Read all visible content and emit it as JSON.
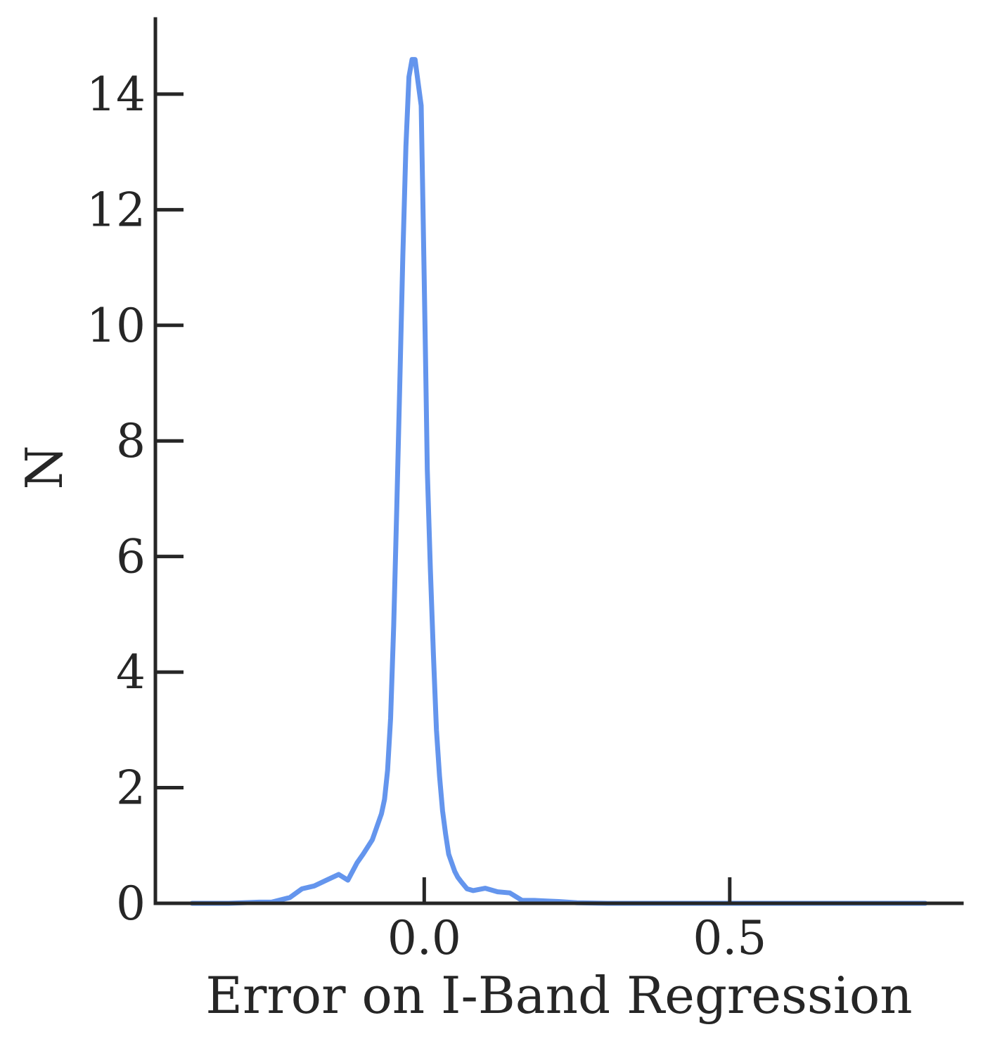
{
  "chart_data": {
    "type": "line",
    "title": "",
    "xlabel": "Error on I-Band Regression",
    "ylabel": "N",
    "xlim": [
      -0.44,
      0.88
    ],
    "ylim": [
      0,
      15.3
    ],
    "xticks": [
      {
        "value": 0.0,
        "label": "0.0"
      },
      {
        "value": 0.5,
        "label": "0.5"
      }
    ],
    "yticks": [
      {
        "value": 0,
        "label": "0"
      },
      {
        "value": 2,
        "label": "2"
      },
      {
        "value": 4,
        "label": "4"
      },
      {
        "value": 6,
        "label": "6"
      },
      {
        "value": 8,
        "label": "8"
      },
      {
        "value": 10,
        "label": "10"
      },
      {
        "value": 12,
        "label": "12"
      },
      {
        "value": 14,
        "label": "14"
      }
    ],
    "grid": false,
    "legend": "none",
    "series": [
      {
        "color": "#6495ED",
        "x": [
          -0.38,
          -0.32,
          -0.27,
          -0.25,
          -0.22,
          -0.2,
          -0.18,
          -0.16,
          -0.14,
          -0.125,
          -0.11,
          -0.1,
          -0.085,
          -0.07,
          -0.065,
          -0.06,
          -0.055,
          -0.05,
          -0.045,
          -0.04,
          -0.035,
          -0.03,
          -0.025,
          -0.02,
          -0.015,
          -0.01,
          -0.005,
          -0.002,
          0.0,
          0.002,
          0.005,
          0.01,
          0.015,
          0.02,
          0.025,
          0.03,
          0.035,
          0.04,
          0.045,
          0.05,
          0.055,
          0.06,
          0.07,
          0.08,
          0.1,
          0.12,
          0.14,
          0.16,
          0.18,
          0.2,
          0.22,
          0.25,
          0.3,
          0.35,
          0.4,
          0.5,
          0.6,
          0.7,
          0.82
        ],
        "y": [
          0.0,
          0.0,
          0.02,
          0.02,
          0.1,
          0.25,
          0.3,
          0.4,
          0.5,
          0.4,
          0.7,
          0.85,
          1.1,
          1.55,
          1.8,
          2.3,
          3.2,
          4.8,
          6.8,
          9.0,
          11.2,
          13.1,
          14.3,
          14.6,
          14.6,
          14.2,
          13.8,
          12.0,
          10.8,
          9.5,
          7.5,
          5.8,
          4.3,
          3.0,
          2.2,
          1.6,
          1.2,
          0.85,
          0.7,
          0.55,
          0.45,
          0.38,
          0.25,
          0.22,
          0.26,
          0.2,
          0.18,
          0.05,
          0.05,
          0.04,
          0.03,
          0.01,
          0.0,
          0.0,
          0.0,
          0.0,
          0.0,
          0.0,
          0.0
        ]
      }
    ]
  }
}
